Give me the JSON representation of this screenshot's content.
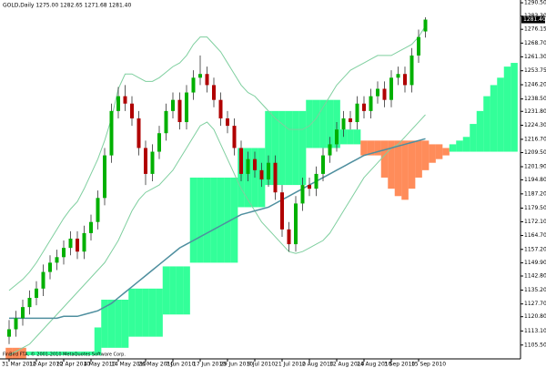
{
  "chart_data": {
    "type": "candlestick",
    "title": "GOLD,Daily  1275.00 1282.65 1271.68 1281.40",
    "footer": "FinBird FTA, © 2001-2010 MetaQuotes Software Corp.",
    "categories": [
      "31 Mar 2010",
      null,
      null,
      null,
      "12 Apr 2010",
      null,
      null,
      null,
      "22 Apr 2010",
      null,
      null,
      null,
      "4 May 2010",
      null,
      null,
      null,
      "14 May 2010",
      null,
      null,
      null,
      "26 May 2010",
      null,
      null,
      null,
      "7 Jun 2010",
      null,
      null,
      null,
      "17 Jun 2010",
      null,
      null,
      null,
      "29 Jun 2010",
      null,
      null,
      null,
      "9 Jul 2010",
      null,
      null,
      null,
      "21 Jul 2010",
      null,
      null,
      null,
      "2 Aug 2010",
      null,
      null,
      null,
      "12 Aug 2010",
      null,
      null,
      null,
      "24 Aug 2010",
      null,
      null,
      null,
      "3 Sep 2010",
      null,
      null,
      null,
      "15 Sep 2010",
      null,
      null,
      null,
      null,
      null,
      null,
      null,
      null,
      null,
      null,
      null,
      null,
      null,
      null
    ],
    "ohlc": [
      [
        1110,
        1119,
        1106,
        1114
      ],
      [
        1114,
        1124,
        1110,
        1120
      ],
      [
        1120,
        1130,
        1116,
        1126
      ],
      [
        1126,
        1135,
        1122,
        1131
      ],
      [
        1131,
        1140,
        1127,
        1136
      ],
      [
        1136,
        1149,
        1132,
        1145
      ],
      [
        1145,
        1154,
        1141,
        1150
      ],
      [
        1150,
        1157,
        1146,
        1153
      ],
      [
        1153,
        1162,
        1149,
        1158
      ],
      [
        1158,
        1167,
        1154,
        1163
      ],
      [
        1163,
        1167,
        1152,
        1156
      ],
      [
        1156,
        1170,
        1152,
        1166
      ],
      [
        1166,
        1176,
        1162,
        1172
      ],
      [
        1172,
        1189,
        1168,
        1185
      ],
      [
        1185,
        1212,
        1181,
        1208
      ],
      [
        1208,
        1236,
        1204,
        1232
      ],
      [
        1232,
        1245,
        1228,
        1240
      ],
      [
        1240,
        1246,
        1232,
        1236
      ],
      [
        1236,
        1240,
        1224,
        1228
      ],
      [
        1228,
        1232,
        1208,
        1212
      ],
      [
        1212,
        1216,
        1192,
        1198
      ],
      [
        1198,
        1214,
        1194,
        1210
      ],
      [
        1210,
        1224,
        1206,
        1220
      ],
      [
        1220,
        1236,
        1216,
        1232
      ],
      [
        1232,
        1242,
        1228,
        1238
      ],
      [
        1238,
        1242,
        1222,
        1226
      ],
      [
        1226,
        1246,
        1222,
        1242
      ],
      [
        1242,
        1254,
        1238,
        1250
      ],
      [
        1250,
        1262,
        1246,
        1252
      ],
      [
        1252,
        1256,
        1242,
        1246
      ],
      [
        1246,
        1250,
        1234,
        1238
      ],
      [
        1238,
        1242,
        1224,
        1228
      ],
      [
        1228,
        1232,
        1220,
        1224
      ],
      [
        1224,
        1228,
        1208,
        1212
      ],
      [
        1212,
        1216,
        1194,
        1198
      ],
      [
        1198,
        1210,
        1194,
        1206
      ],
      [
        1206,
        1210,
        1196,
        1200
      ],
      [
        1200,
        1204,
        1191,
        1195
      ],
      [
        1195,
        1208,
        1191,
        1204
      ],
      [
        1204,
        1208,
        1184,
        1188
      ],
      [
        1188,
        1192,
        1164,
        1168
      ],
      [
        1168,
        1172,
        1156,
        1160
      ],
      [
        1160,
        1186,
        1156,
        1182
      ],
      [
        1182,
        1196,
        1178,
        1192
      ],
      [
        1192,
        1196,
        1186,
        1190
      ],
      [
        1190,
        1202,
        1186,
        1198
      ],
      [
        1198,
        1212,
        1194,
        1208
      ],
      [
        1208,
        1218,
        1204,
        1214
      ],
      [
        1214,
        1226,
        1210,
        1222
      ],
      [
        1222,
        1232,
        1218,
        1228
      ],
      [
        1228,
        1232,
        1222,
        1226
      ],
      [
        1226,
        1240,
        1222,
        1236
      ],
      [
        1236,
        1240,
        1228,
        1232
      ],
      [
        1232,
        1244,
        1228,
        1240
      ],
      [
        1240,
        1248,
        1236,
        1244
      ],
      [
        1244,
        1248,
        1234,
        1238
      ],
      [
        1238,
        1254,
        1234,
        1250
      ],
      [
        1250,
        1256,
        1246,
        1252
      ],
      [
        1252,
        1256,
        1242,
        1246
      ],
      [
        1246,
        1266,
        1242,
        1262
      ],
      [
        1262,
        1276,
        1258,
        1272
      ],
      [
        1275,
        1282.65,
        1271.68,
        1281.4
      ],
      null,
      null,
      null,
      null,
      null,
      null,
      null,
      null,
      null,
      null,
      null,
      null,
      null
    ],
    "up_color": "#00b000",
    "down_color": "#b00000",
    "wick_color": "#333333",
    "last_label": {
      "value": 1281.4,
      "label": "1281.40"
    },
    "lines": [
      {
        "color": "#7fcf9f",
        "width": 1,
        "values": [
          1135,
          1138,
          1141,
          1145,
          1150,
          1156,
          1162,
          1168,
          1174,
          1179,
          1183,
          1190,
          1198,
          1206,
          1216,
          1228,
          1244,
          1252,
          1252,
          1250,
          1248,
          1248,
          1250,
          1253,
          1256,
          1258,
          1262,
          1268,
          1272,
          1272,
          1268,
          1264,
          1258,
          1252,
          1246,
          1242,
          1240,
          1236,
          1232,
          1228,
          1225,
          1222,
          1222,
          1222,
          1224,
          1228,
          1234,
          1240,
          1246,
          1250,
          1254,
          1256,
          1258,
          1260,
          1262,
          1262,
          1262,
          1264,
          1266,
          1268,
          1272,
          1278,
          null,
          null,
          null,
          null,
          null,
          null,
          null,
          null,
          null,
          null,
          null,
          null,
          null
        ]
      },
      {
        "color": "#7fcf9f",
        "width": 1,
        "values": [
          1100,
          1102,
          1104,
          1106,
          1110,
          1114,
          1118,
          1122,
          1126,
          1130,
          1134,
          1138,
          1142,
          1146,
          1150,
          1156,
          1162,
          1170,
          1178,
          1184,
          1188,
          1190,
          1192,
          1196,
          1200,
          1206,
          1212,
          1218,
          1224,
          1226,
          1222,
          1214,
          1206,
          1198,
          1190,
          1184,
          1178,
          1172,
          1168,
          1164,
          1160,
          1156,
          1155,
          1156,
          1158,
          1160,
          1162,
          1166,
          1172,
          1178,
          1184,
          1190,
          1196,
          1200,
          1204,
          1208,
          1212,
          1214,
          1218,
          1222,
          1226,
          1230,
          null,
          null,
          null,
          null,
          null,
          null,
          null,
          null,
          null,
          null,
          null,
          null,
          null
        ]
      },
      {
        "color": "#4f8f9f",
        "width": 1.5,
        "values": [
          1120,
          1120,
          1120,
          1120,
          1120,
          1120,
          1120,
          1120,
          1121,
          1121,
          1121,
          1122,
          1123,
          1124,
          1126,
          1128,
          1131,
          1134,
          1137,
          1140,
          1143,
          1146,
          1149,
          1152,
          1155,
          1158,
          1160,
          1162,
          1164,
          1166,
          1168,
          1170,
          1172,
          1174,
          1176,
          1177,
          1178,
          1179,
          1180,
          1182,
          1184,
          1186,
          1188,
          1190,
          1192,
          1194,
          1196,
          1198,
          1200,
          1202,
          1204,
          1206,
          1208,
          1209,
          1210,
          1211,
          1212,
          1213,
          1214,
          1215,
          1216,
          1217,
          null,
          null,
          null,
          null,
          null,
          null,
          null,
          null,
          null,
          null,
          null,
          null,
          null
        ]
      }
    ],
    "cloud_colors": [
      "#33ff99",
      "#ff8c5a"
    ],
    "cloud_a": [
      1098,
      1098,
      1098,
      1102,
      1102,
      1102,
      1102,
      1102,
      1102,
      1102,
      1102,
      1102,
      1102,
      1115,
      1130,
      1130,
      1130,
      1130,
      1136,
      1136,
      1136,
      1136,
      1136,
      1148,
      1148,
      1148,
      1148,
      1196,
      1196,
      1196,
      1196,
      1196,
      1196,
      1196,
      1212,
      1212,
      1212,
      1212,
      1232,
      1232,
      1232,
      1232,
      1232,
      1232,
      1238,
      1238,
      1238,
      1238,
      1238,
      1222,
      1222,
      1222,
      1208,
      1208,
      1208,
      1196,
      1190,
      1186,
      1184,
      1190,
      1196,
      1200,
      1204,
      1206,
      1208,
      1214,
      1216,
      1218,
      1225,
      1232,
      1240,
      1246,
      1250,
      1256,
      1258
    ],
    "cloud_b": [
      1104,
      1104,
      1104,
      1100,
      1100,
      1100,
      1100,
      1100,
      1100,
      1100,
      1100,
      1100,
      1100,
      1100,
      1104,
      1104,
      1104,
      1104,
      1110,
      1110,
      1110,
      1110,
      1110,
      1122,
      1122,
      1122,
      1122,
      1150,
      1150,
      1150,
      1150,
      1150,
      1150,
      1150,
      1180,
      1180,
      1180,
      1180,
      1192,
      1192,
      1192,
      1192,
      1192,
      1192,
      1212,
      1212,
      1212,
      1212,
      1212,
      1214,
      1214,
      1214,
      1216,
      1216,
      1216,
      1216,
      1216,
      1216,
      1216,
      1216,
      1216,
      1216,
      1214,
      1214,
      1212,
      1210,
      1210,
      1210,
      1210,
      1210,
      1210,
      1210,
      1210,
      1210,
      1210
    ],
    "ylim": [
      1098,
      1292
    ],
    "yticks": [
      {
        "value": 1290.5,
        "label": "1290.50"
      },
      {
        "value": 1283.3,
        "label": "1283.30"
      },
      {
        "value": 1276.15,
        "label": "1276.15"
      },
      {
        "value": 1268.7,
        "label": "1268.70"
      },
      {
        "value": 1261.3,
        "label": "1261.30"
      },
      {
        "value": 1253.75,
        "label": "1253.75"
      },
      {
        "value": 1246.2,
        "label": "1246.20"
      },
      {
        "value": 1238.5,
        "label": "1238.50"
      },
      {
        "value": 1231.8,
        "label": "1231.80"
      },
      {
        "value": 1224.3,
        "label": "1224.30"
      },
      {
        "value": 1216.7,
        "label": "1216.70"
      },
      {
        "value": 1209.5,
        "label": "1209.50"
      },
      {
        "value": 1201.9,
        "label": "1201.90"
      },
      {
        "value": 1194.8,
        "label": "1194.80"
      },
      {
        "value": 1187.2,
        "label": "1187.20"
      },
      {
        "value": 1179.5,
        "label": "1179.50"
      },
      {
        "value": 1172.1,
        "label": "1172.10"
      },
      {
        "value": 1164.7,
        "label": "1164.70"
      },
      {
        "value": 1157.2,
        "label": "1157.20"
      },
      {
        "value": 1149.9,
        "label": "1149.90"
      },
      {
        "value": 1142.8,
        "label": "1142.80"
      },
      {
        "value": 1135.2,
        "label": "1135.20"
      },
      {
        "value": 1127.7,
        "label": "1127.70"
      },
      {
        "value": 1120.8,
        "label": "1120.80"
      },
      {
        "value": 1113.1,
        "label": "1113.10"
      },
      {
        "value": 1105.5,
        "label": "1105.50"
      }
    ]
  }
}
